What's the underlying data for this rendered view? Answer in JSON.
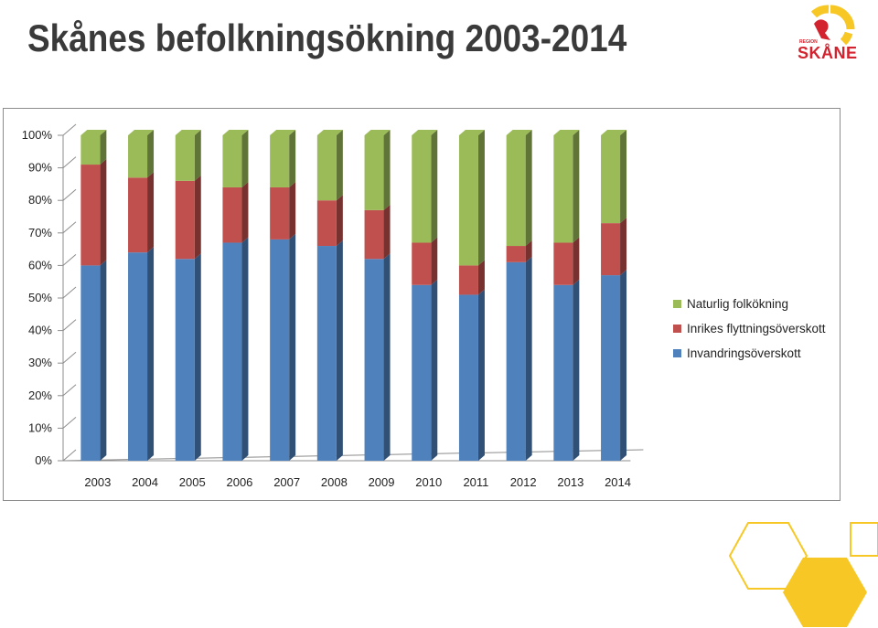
{
  "page": {
    "title": "Skånes befolkningsökning 2003-2014"
  },
  "logo": {
    "small_text": "REGION",
    "text": "SKÅNE"
  },
  "colors": {
    "naturlig": "#9bbb59",
    "inrikes": "#c0504d",
    "invandring": "#4f81bd",
    "accent_yellow": "#f7c825"
  },
  "chart_data": {
    "type": "bar",
    "stacked": true,
    "percent": true,
    "title": "",
    "xlabel": "",
    "ylabel": "",
    "ylim": [
      0,
      100
    ],
    "yticks": [
      "0%",
      "10%",
      "20%",
      "30%",
      "40%",
      "50%",
      "60%",
      "70%",
      "80%",
      "90%",
      "100%"
    ],
    "categories": [
      "2003",
      "2004",
      "2005",
      "2006",
      "2007",
      "2008",
      "2009",
      "2010",
      "2011",
      "2012",
      "2013",
      "2014"
    ],
    "series": [
      {
        "name": "Invandringsöverskott",
        "color": "#4f81bd",
        "values": [
          60,
          64,
          62,
          67,
          68,
          66,
          62,
          54,
          51,
          61,
          54,
          57
        ]
      },
      {
        "name": "Inrikes flyttningsöverskott",
        "color": "#c0504d",
        "values": [
          31,
          23,
          24,
          17,
          16,
          14,
          15,
          13,
          9,
          5,
          13,
          16
        ]
      },
      {
        "name": "Naturlig folkökning",
        "color": "#9bbb59",
        "values": [
          9,
          13,
          14,
          16,
          16,
          20,
          23,
          33,
          40,
          34,
          33,
          27
        ]
      }
    ],
    "legend": {
      "position": "right",
      "order": [
        "Naturlig folkökning",
        "Inrikes flyttningsöverskott",
        "Invandringsöverskott"
      ]
    },
    "grid": false,
    "style": "3d-column"
  }
}
